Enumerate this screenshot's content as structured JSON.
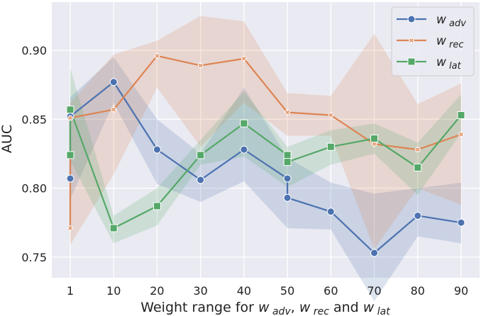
{
  "chart_data": {
    "type": "line",
    "title": "",
    "xlabel": "Weight range for w adv, w rec and w lat",
    "ylabel": "AUC",
    "x": [
      1,
      10,
      20,
      30,
      40,
      50,
      60,
      70,
      80,
      90
    ],
    "ylim": [
      0.735,
      0.935
    ],
    "yticks": [
      0.75,
      0.8,
      0.85,
      0.9
    ],
    "ytick_labels": [
      "0.75",
      "0.80",
      "0.85",
      "0.90"
    ],
    "xtick_labels": [
      "1",
      "10",
      "20",
      "30",
      "40",
      "50",
      "60",
      "70",
      "80",
      "90"
    ],
    "grid": true,
    "legend_position": "top-right",
    "series": [
      {
        "name": "w adv",
        "color": "#4c72b0",
        "marker": "circle",
        "points": [
          [
            1,
            0.807
          ],
          [
            1,
            0.852
          ],
          [
            10,
            0.877
          ],
          [
            20,
            0.828
          ],
          [
            30,
            0.806
          ],
          [
            40,
            0.828
          ],
          [
            50,
            0.807
          ],
          [
            50,
            0.793
          ],
          [
            60,
            0.783
          ],
          [
            70,
            0.753
          ],
          [
            80,
            0.78
          ],
          [
            90,
            0.775
          ]
        ],
        "band": {
          "x": [
            1,
            10,
            20,
            30,
            40,
            50,
            60,
            70,
            80,
            90
          ],
          "lower": [
            0.792,
            0.862,
            0.803,
            0.79,
            0.805,
            0.771,
            0.77,
            0.718,
            0.765,
            0.76
          ],
          "upper": [
            0.866,
            0.895,
            0.85,
            0.825,
            0.873,
            0.822,
            0.804,
            0.796,
            0.8,
            0.804
          ]
        }
      },
      {
        "name": "w rec",
        "color": "#dd8452",
        "marker": "x",
        "points": [
          [
            1,
            0.771
          ],
          [
            1,
            0.851
          ],
          [
            10,
            0.857
          ],
          [
            20,
            0.896
          ],
          [
            30,
            0.889
          ],
          [
            40,
            0.894
          ],
          [
            50,
            0.855
          ],
          [
            60,
            0.853
          ],
          [
            70,
            0.832
          ],
          [
            80,
            0.828
          ],
          [
            90,
            0.839
          ]
        ],
        "band": {
          "x": [
            1,
            10,
            20,
            30,
            40,
            50,
            60,
            70,
            80,
            90
          ],
          "lower": [
            0.759,
            0.81,
            0.873,
            0.83,
            0.862,
            0.838,
            0.838,
            0.756,
            0.8,
            0.788
          ],
          "upper": [
            0.862,
            0.897,
            0.907,
            0.925,
            0.921,
            0.869,
            0.867,
            0.912,
            0.861,
            0.876
          ]
        }
      },
      {
        "name": "w lat",
        "color": "#55a868",
        "marker": "square",
        "points": [
          [
            1,
            0.824
          ],
          [
            1,
            0.857
          ],
          [
            10,
            0.771
          ],
          [
            20,
            0.787
          ],
          [
            30,
            0.824
          ],
          [
            40,
            0.847
          ],
          [
            50,
            0.824
          ],
          [
            50,
            0.819
          ],
          [
            60,
            0.83
          ],
          [
            70,
            0.836
          ],
          [
            80,
            0.815
          ],
          [
            90,
            0.853
          ]
        ],
        "band": {
          "x": [
            1,
            10,
            20,
            30,
            40,
            50,
            60,
            70,
            80,
            90
          ],
          "lower": [
            0.82,
            0.76,
            0.773,
            0.817,
            0.823,
            0.801,
            0.817,
            0.825,
            0.795,
            0.84
          ],
          "upper": [
            0.887,
            0.78,
            0.8,
            0.835,
            0.87,
            0.83,
            0.842,
            0.847,
            0.833,
            0.868
          ]
        }
      }
    ]
  }
}
